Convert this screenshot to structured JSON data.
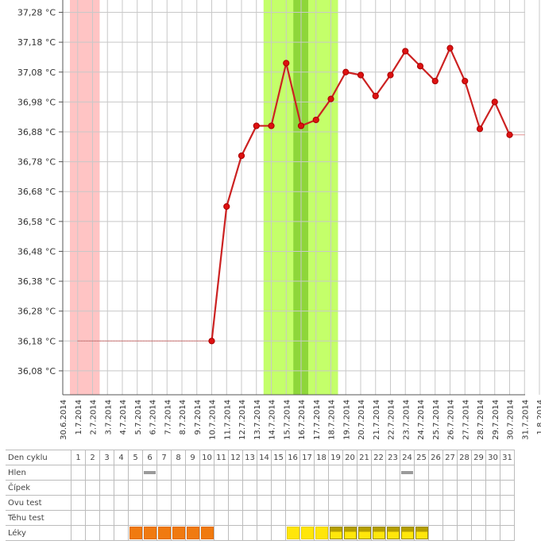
{
  "chart_data": {
    "type": "line",
    "ylim": [
      36.0,
      37.3
    ],
    "yticks": [
      "36,08 °C",
      "36,18 °C",
      "36,28 °C",
      "36,38 °C",
      "36,48 °C",
      "36,58 °C",
      "36,68 °C",
      "36,78 °C",
      "36,88 °C",
      "36,98 °C",
      "37,08 °C",
      "37,18 °C",
      "37,28 °C"
    ],
    "ytick_values": [
      36.08,
      36.18,
      36.28,
      36.38,
      36.48,
      36.58,
      36.68,
      36.78,
      36.88,
      36.98,
      37.08,
      37.18,
      37.28
    ],
    "x_dates": [
      "30.6.2014",
      "1.7.2014",
      "2.7.2014",
      "3.7.2014",
      "4.7.2014",
      "5.7.2014",
      "6.7.2014",
      "7.7.2014",
      "8.7.2014",
      "9.7.2014",
      "10.7.2014",
      "11.7.2014",
      "12.7.2014",
      "13.7.2014",
      "14.7.2014",
      "15.7.2014",
      "16.7.2014",
      "17.7.2014",
      "18.7.2014",
      "19.7.2014",
      "20.7.2014",
      "21.7.2014",
      "22.7.2014",
      "23.7.2014",
      "24.7.2014",
      "25.7.2014",
      "26.7.2014",
      "27.7.2014",
      "28.7.2014",
      "29.7.2014",
      "30.7.2014",
      "31.7.2014",
      "1.8.2014"
    ],
    "series": [
      {
        "color": "#cc2222",
        "points": [
          {
            "x": "10.7.2014",
            "y": 36.18
          },
          {
            "x": "11.7.2014",
            "y": 36.63
          },
          {
            "x": "12.7.2014",
            "y": 36.8
          },
          {
            "x": "13.7.2014",
            "y": 36.9
          },
          {
            "x": "14.7.2014",
            "y": 36.9
          },
          {
            "x": "15.7.2014",
            "y": 37.11
          },
          {
            "x": "16.7.2014",
            "y": 36.9
          },
          {
            "x": "17.7.2014",
            "y": 36.92
          },
          {
            "x": "18.7.2014",
            "y": 36.99
          },
          {
            "x": "19.7.2014",
            "y": 37.08
          },
          {
            "x": "20.7.2014",
            "y": 37.07
          },
          {
            "x": "21.7.2014",
            "y": 37.0
          },
          {
            "x": "22.7.2014",
            "y": 37.07
          },
          {
            "x": "23.7.2014",
            "y": 37.15
          },
          {
            "x": "24.7.2014",
            "y": 37.1
          },
          {
            "x": "25.7.2014",
            "y": 37.05
          },
          {
            "x": "26.7.2014",
            "y": 37.16
          },
          {
            "x": "27.7.2014",
            "y": 37.05
          },
          {
            "x": "28.7.2014",
            "y": 36.89
          },
          {
            "x": "29.7.2014",
            "y": 36.98
          },
          {
            "x": "30.7.2014",
            "y": 36.87
          }
        ],
        "dotted_before": {
          "from": "1.7.2014",
          "to": "10.7.2014",
          "y": 36.18
        },
        "dotted_after": {
          "from": "30.7.2014",
          "to": "31.7.2014",
          "y": 36.87
        }
      }
    ],
    "bands": [
      {
        "from": "30.6.2014",
        "to": "2.7.2014",
        "color": "#ffc4c4"
      },
      {
        "from": "13.7.2014",
        "to": "18.7.2014",
        "color": "#c4ff6a"
      },
      {
        "from": "15.7.2014",
        "to": "16.7.2014",
        "color": "#8ed63a"
      }
    ],
    "grid": true
  },
  "table": {
    "rows": [
      {
        "label": "Den cyklu",
        "values": [
          "1",
          "2",
          "3",
          "4",
          "5",
          "6",
          "7",
          "8",
          "9",
          "10",
          "11",
          "12",
          "13",
          "14",
          "15",
          "16",
          "17",
          "18",
          "19",
          "20",
          "21",
          "22",
          "23",
          "24",
          "25",
          "26",
          "27",
          "28",
          "29",
          "30",
          "31"
        ]
      },
      {
        "label": "Hlen",
        "marks": {
          "6": "gray",
          "24": "gray"
        }
      },
      {
        "label": "Čípek",
        "marks": {}
      },
      {
        "label": "Ovu test",
        "marks": {}
      },
      {
        "label": "Těhu test",
        "marks": {}
      },
      {
        "label": "Léky",
        "marks": {
          "5": "orange",
          "6": "orange",
          "7": "orange",
          "8": "orange",
          "9": "orange",
          "10": "orange",
          "16": "yellow",
          "17": "yellow",
          "18": "yellow",
          "19": "olive",
          "20": "olive",
          "21": "olive",
          "22": "olive",
          "23": "olive",
          "24": "olive",
          "25": "olive"
        }
      }
    ]
  }
}
